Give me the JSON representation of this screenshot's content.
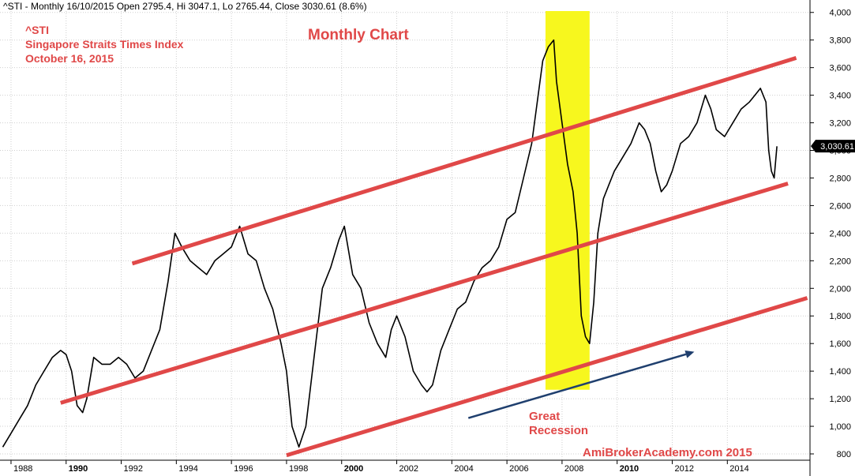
{
  "header": {
    "ohlc_line": "^STI - Monthly 16/10/2015 Open 2795.4, Hi 3047.1, Lo 2765.44, Close 3030.61 (8.6%)"
  },
  "info": {
    "symbol": "^STI",
    "name": "Singapore Straits Times Index",
    "date": "October 16, 2015"
  },
  "title": "Monthly Chart",
  "annotation": {
    "line1": "Great",
    "line2": "Recession"
  },
  "watermark": "AmiBrokerAcademy.com 2015",
  "colors": {
    "price": "#000000",
    "channel": "#e04848",
    "highlight": "#f7f71e",
    "arrow": "#1f3f6e",
    "annotation_text": "#e04848",
    "close_label_bg": "#000000"
  },
  "chart_data": {
    "type": "line",
    "interval": "monthly",
    "xlim": [
      1987.6,
      2017.0
    ],
    "ylim": [
      760,
      4010
    ],
    "grid": true,
    "x_ticks": [
      {
        "label": "1988",
        "value": 1988,
        "bold": false
      },
      {
        "label": "1990",
        "value": 1990,
        "bold": true
      },
      {
        "label": "1992",
        "value": 1992,
        "bold": false
      },
      {
        "label": "1994",
        "value": 1994,
        "bold": false
      },
      {
        "label": "1996",
        "value": 1996,
        "bold": false
      },
      {
        "label": "1998",
        "value": 1998,
        "bold": false
      },
      {
        "label": "2000",
        "value": 2000,
        "bold": true
      },
      {
        "label": "2002",
        "value": 2002,
        "bold": false
      },
      {
        "label": "2004",
        "value": 2004,
        "bold": false
      },
      {
        "label": "2006",
        "value": 2006,
        "bold": false
      },
      {
        "label": "2008",
        "value": 2008,
        "bold": false
      },
      {
        "label": "2010",
        "value": 2010,
        "bold": true
      },
      {
        "label": "2012",
        "value": 2012,
        "bold": false
      },
      {
        "label": "2014",
        "value": 2014,
        "bold": false
      }
    ],
    "y_ticks": [
      {
        "label": "800",
        "value": 800
      },
      {
        "label": "1,000",
        "value": 1000
      },
      {
        "label": "1,200",
        "value": 1200
      },
      {
        "label": "1,400",
        "value": 1400
      },
      {
        "label": "1,600",
        "value": 1600
      },
      {
        "label": "1,800",
        "value": 1800
      },
      {
        "label": "2,000",
        "value": 2000
      },
      {
        "label": "2,200",
        "value": 2200
      },
      {
        "label": "2,400",
        "value": 2400
      },
      {
        "label": "2,600",
        "value": 2600
      },
      {
        "label": "2,800",
        "value": 2800
      },
      {
        "label": "3,000",
        "value": 3000
      },
      {
        "label": "3,200",
        "value": 3200
      },
      {
        "label": "3,400",
        "value": 3400
      },
      {
        "label": "3,600",
        "value": 3600
      },
      {
        "label": "3,800",
        "value": 3800
      },
      {
        "label": "4,000",
        "value": 4000
      }
    ],
    "close_label": {
      "text": "3,030.61",
      "value": 3030.61
    },
    "highlight_range": {
      "x": [
        2007.4,
        2009.0
      ],
      "y": [
        1265,
        4010
      ]
    },
    "series": [
      {
        "type": "price",
        "x": [
          1987.7,
          1988.0,
          1988.3,
          1988.6,
          1988.9,
          1989.2,
          1989.5,
          1989.8,
          1990.0,
          1990.2,
          1990.4,
          1990.6,
          1990.75,
          1991.0,
          1991.3,
          1991.6,
          1991.9,
          1992.2,
          1992.5,
          1992.8,
          1993.1,
          1993.4,
          1993.7,
          1993.95,
          1994.2,
          1994.5,
          1994.8,
          1995.1,
          1995.4,
          1995.7,
          1996.0,
          1996.3,
          1996.6,
          1996.9,
          1997.2,
          1997.5,
          1997.8,
          1998.0,
          1998.2,
          1998.45,
          1998.7,
          1999.0,
          1999.3,
          1999.6,
          1999.9,
          2000.1,
          2000.4,
          2000.7,
          2001.0,
          2001.3,
          2001.6,
          2001.8,
          2002.0,
          2002.3,
          2002.6,
          2002.9,
          2003.1,
          2003.3,
          2003.6,
          2003.9,
          2004.2,
          2004.5,
          2004.8,
          2005.1,
          2005.4,
          2005.7,
          2006.0,
          2006.3,
          2006.6,
          2006.9,
          2007.1,
          2007.3,
          2007.5,
          2007.7,
          2007.8,
          2008.0,
          2008.2,
          2008.4,
          2008.55,
          2008.7,
          2008.85,
          2009.0,
          2009.15,
          2009.3,
          2009.5,
          2009.7,
          2009.9,
          2010.2,
          2010.5,
          2010.8,
          2011.0,
          2011.2,
          2011.4,
          2011.6,
          2011.8,
          2012.0,
          2012.3,
          2012.6,
          2012.9,
          2013.2,
          2013.4,
          2013.6,
          2013.9,
          2014.2,
          2014.5,
          2014.8,
          2015.0,
          2015.2,
          2015.4,
          2015.5,
          2015.6,
          2015.7,
          2015.8
        ],
        "values": [
          850,
          950,
          1050,
          1150,
          1300,
          1400,
          1500,
          1550,
          1520,
          1400,
          1150,
          1100,
          1200,
          1500,
          1450,
          1450,
          1500,
          1450,
          1350,
          1400,
          1550,
          1700,
          2050,
          2400,
          2300,
          2200,
          2150,
          2100,
          2200,
          2250,
          2300,
          2450,
          2250,
          2200,
          2000,
          1850,
          1600,
          1400,
          1000,
          850,
          1000,
          1500,
          2000,
          2150,
          2350,
          2450,
          2100,
          2000,
          1750,
          1600,
          1500,
          1700,
          1800,
          1650,
          1400,
          1300,
          1250,
          1300,
          1550,
          1700,
          1850,
          1900,
          2050,
          2150,
          2200,
          2300,
          2500,
          2550,
          2800,
          3050,
          3350,
          3650,
          3750,
          3800,
          3500,
          3200,
          2900,
          2700,
          2400,
          1800,
          1650,
          1600,
          1900,
          2400,
          2650,
          2750,
          2850,
          2950,
          3050,
          3200,
          3150,
          3050,
          2850,
          2700,
          2750,
          2850,
          3050,
          3100,
          3200,
          3400,
          3300,
          3150,
          3100,
          3200,
          3300,
          3350,
          3400,
          3450,
          3350,
          3000,
          2850,
          2800,
          3030
        ]
      },
      {
        "type": "channel",
        "name": "Upper channel",
        "x": [
          1992.4,
          2016.5
        ],
        "values": [
          2180,
          3670
        ]
      },
      {
        "type": "channel",
        "name": "Middle channel",
        "x": [
          1989.8,
          2016.2
        ],
        "values": [
          1170,
          2760
        ]
      },
      {
        "type": "channel",
        "name": "Lower channel",
        "x": [
          1998.0,
          2016.9
        ],
        "values": [
          790,
          1930
        ]
      },
      {
        "type": "arrow",
        "name": "Trend arrow",
        "x": [
          2004.6,
          2012.8
        ],
        "values": [
          1060,
          1540
        ]
      }
    ]
  }
}
